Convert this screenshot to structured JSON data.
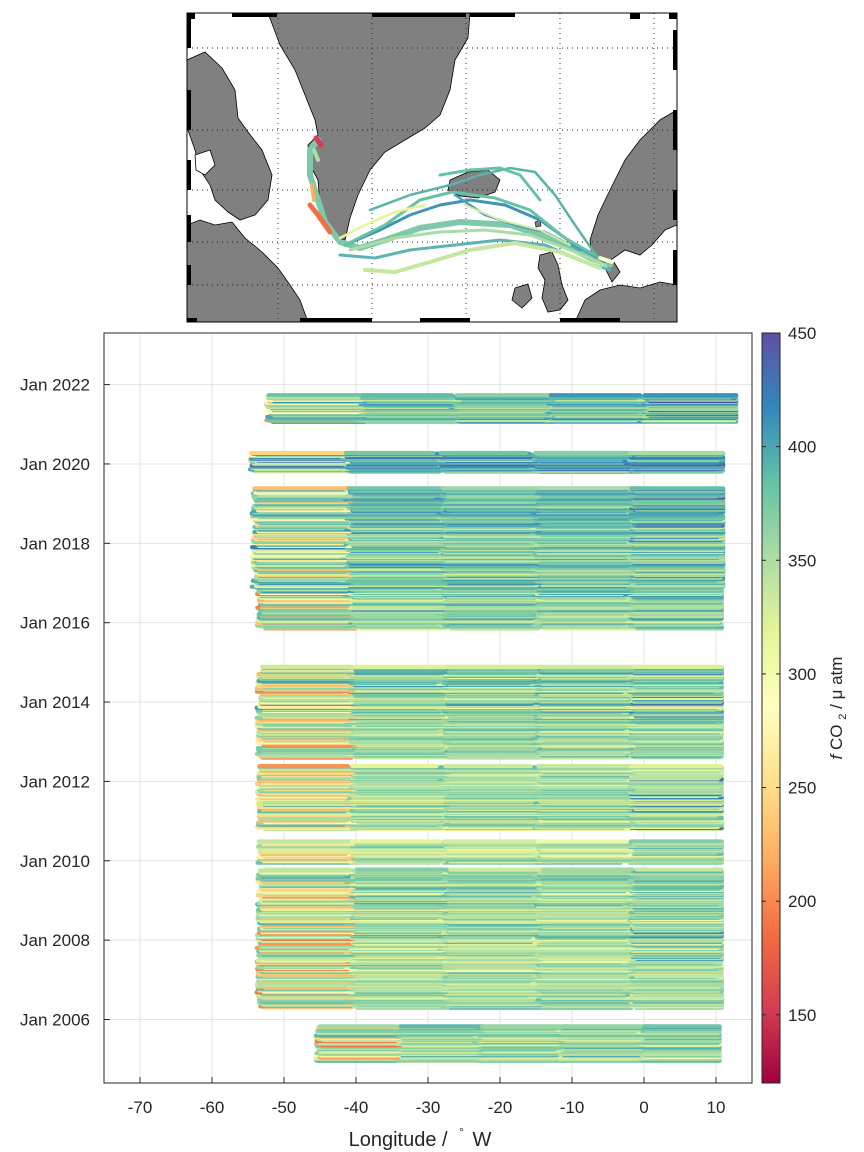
{
  "chart_data": [
    {
      "type": "map",
      "grid": "dotted",
      "frame": "checkered-border",
      "land_color": "#808080",
      "sea_color": "#ffffff",
      "track_colormap": "fCO2"
    },
    {
      "type": "scatter",
      "xlabel_main": "Longitude /",
      "xlabel_unit": "W",
      "xlim": [
        -75,
        15
      ],
      "xticks": [
        -70,
        -60,
        -50,
        -40,
        -30,
        -20,
        -10,
        0,
        10
      ],
      "ylim": [
        2004.4,
        2023.3
      ],
      "yticks": [
        {
          "value": 2006,
          "label": "Jan 2006"
        },
        {
          "value": 2008,
          "label": "Jan 2008"
        },
        {
          "value": 2010,
          "label": "Jan 2010"
        },
        {
          "value": 2012,
          "label": "Jan 2012"
        },
        {
          "value": 2014,
          "label": "Jan 2014"
        },
        {
          "value": 2016,
          "label": "Jan 2016"
        },
        {
          "value": 2018,
          "label": "Jan 2018"
        },
        {
          "value": 2020,
          "label": "Jan 2020"
        },
        {
          "value": 2022,
          "label": "Jan 2022"
        }
      ],
      "grid": true,
      "colorbar": {
        "label_prefix": "f",
        "label_mid": " CO",
        "label_sub": "2",
        "label_suffix": " / μ atm",
        "clim": [
          120,
          450
        ],
        "ticks": [
          150,
          200,
          250,
          300,
          350,
          400,
          450
        ],
        "colors": [
          "#9e0142",
          "#d53e4f",
          "#f46d43",
          "#fdae61",
          "#fee08b",
          "#ffffbf",
          "#e6f598",
          "#abdda4",
          "#66c2a5",
          "#3288bd",
          "#5e4fa2"
        ]
      },
      "blocks": [
        {
          "t0": 2004.95,
          "t1": 2005.85,
          "lon0": -45.8,
          "lon1": 10.5,
          "fco2": 355
        },
        {
          "t0": 2006.3,
          "t1": 2009.8,
          "lon0": -53.8,
          "lon1": 10.8,
          "fco2": 350
        },
        {
          "t0": 2009.95,
          "t1": 2010.5,
          "lon0": -53.8,
          "lon1": 10.8,
          "fco2": 340
        },
        {
          "t0": 2010.8,
          "t1": 2012.4,
          "lon0": -53.8,
          "lon1": 10.8,
          "fco2": 355
        },
        {
          "t0": 2012.6,
          "t1": 2014.9,
          "lon0": -53.8,
          "lon1": 10.8,
          "fco2": 360
        },
        {
          "t0": 2015.85,
          "t1": 2016.9,
          "lon0": -53.8,
          "lon1": 10.8,
          "fco2": 365
        },
        {
          "t0": 2016.9,
          "t1": 2019.4,
          "lon0": -54.5,
          "lon1": 11.0,
          "fco2": 375
        },
        {
          "t0": 2019.8,
          "t1": 2020.3,
          "lon0": -54.8,
          "lon1": 11.0,
          "fco2": 395
        },
        {
          "t0": 2021.05,
          "t1": 2021.75,
          "lon0": -52.5,
          "lon1": 12.8,
          "fco2": 370
        }
      ]
    }
  ]
}
